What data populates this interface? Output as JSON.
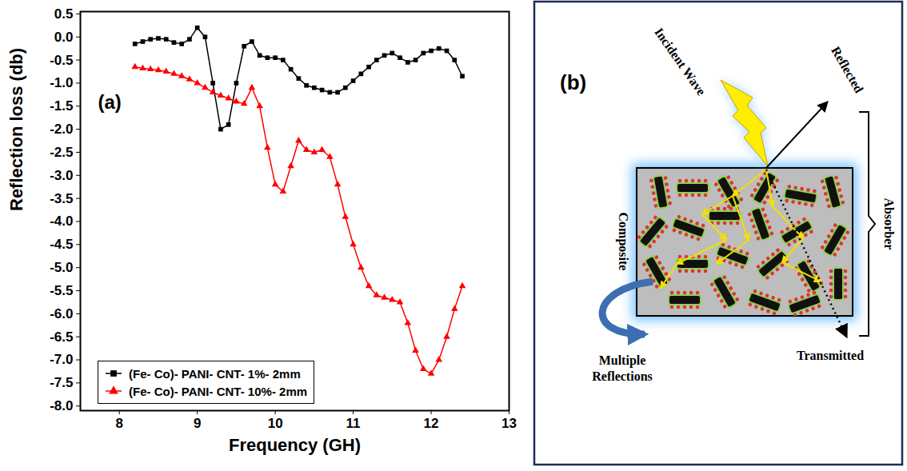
{
  "chart_data": {
    "type": "line",
    "annotations": [
      "(a)"
    ],
    "x_label": "Frequency (GH)",
    "y_label": "Reflection loss (db)",
    "x": [
      8.2,
      8.3,
      8.4,
      8.5,
      8.6,
      8.7,
      8.8,
      8.9,
      9.0,
      9.1,
      9.2,
      9.3,
      9.4,
      9.5,
      9.6,
      9.7,
      9.8,
      9.9,
      10.0,
      10.1,
      10.2,
      10.3,
      10.4,
      10.5,
      10.6,
      10.7,
      10.8,
      10.9,
      11.0,
      11.1,
      11.2,
      11.3,
      11.4,
      11.5,
      11.6,
      11.7,
      11.8,
      11.9,
      12.0,
      12.1,
      12.2,
      12.3,
      12.4
    ],
    "series": [
      {
        "name": "(Fe- Co)- PANI- CNT- 1%- 2mm",
        "color": "#000000",
        "marker": "square",
        "line_style": "solid",
        "values": [
          -0.15,
          -0.1,
          -0.05,
          -0.03,
          -0.05,
          -0.12,
          -0.15,
          -0.05,
          0.2,
          0.0,
          -1.0,
          -2.0,
          -1.9,
          -1.0,
          -0.2,
          -0.1,
          -0.4,
          -0.45,
          -0.45,
          -0.5,
          -0.7,
          -0.9,
          -1.05,
          -1.1,
          -1.15,
          -1.2,
          -1.2,
          -1.1,
          -0.95,
          -0.8,
          -0.65,
          -0.5,
          -0.4,
          -0.35,
          -0.45,
          -0.55,
          -0.5,
          -0.35,
          -0.3,
          -0.25,
          -0.3,
          -0.5,
          -0.85
        ]
      },
      {
        "name": "(Fe- Co)- PANI- CNT- 10%- 2mm",
        "color": "#ff0000",
        "marker": "triangle",
        "line_style": "solid",
        "values": [
          -0.65,
          -0.68,
          -0.7,
          -0.72,
          -0.75,
          -0.8,
          -0.85,
          -0.92,
          -1.0,
          -1.1,
          -1.2,
          -1.27,
          -1.33,
          -1.4,
          -1.45,
          -1.1,
          -1.5,
          -2.4,
          -3.2,
          -3.35,
          -2.8,
          -2.25,
          -2.45,
          -2.5,
          -2.45,
          -2.6,
          -3.2,
          -3.9,
          -4.5,
          -5.0,
          -5.4,
          -5.6,
          -5.65,
          -5.7,
          -5.75,
          -6.2,
          -6.8,
          -7.2,
          -7.3,
          -7.0,
          -6.5,
          -5.9,
          -5.4
        ]
      }
    ],
    "xlim": [
      7.5,
      13
    ],
    "xticks": [
      8,
      9,
      10,
      11,
      12,
      13
    ],
    "ylim": [
      -8.1,
      0.55
    ],
    "yticks": [
      0.5,
      {
        "value": 0,
        "label": "0.0"
      },
      -0.5,
      {
        "value": -1,
        "label": "-1.0"
      },
      -1.5,
      {
        "value": -2,
        "label": "-2.0"
      },
      -2.5,
      {
        "value": -3,
        "label": "-3.0"
      },
      -3.5,
      {
        "value": -4,
        "label": "-4.0"
      },
      -4.5,
      {
        "value": -5,
        "label": "-5.0"
      },
      -5.5,
      {
        "value": -6,
        "label": "-6.0"
      },
      -6.5,
      {
        "value": -7,
        "label": "-7.0"
      },
      -7.5,
      {
        "value": -8,
        "label": "-8.0"
      }
    ],
    "grid": false,
    "legend": "lower left"
  },
  "diagram": {
    "panel_label": "(b)",
    "labels": {
      "incident": "Incident Wave",
      "reflected": "Reflected",
      "composite": "Composite",
      "absorber": "Absorber",
      "multiple_reflections": "Multiple Reflections",
      "transmitted": "Transmitted"
    }
  }
}
